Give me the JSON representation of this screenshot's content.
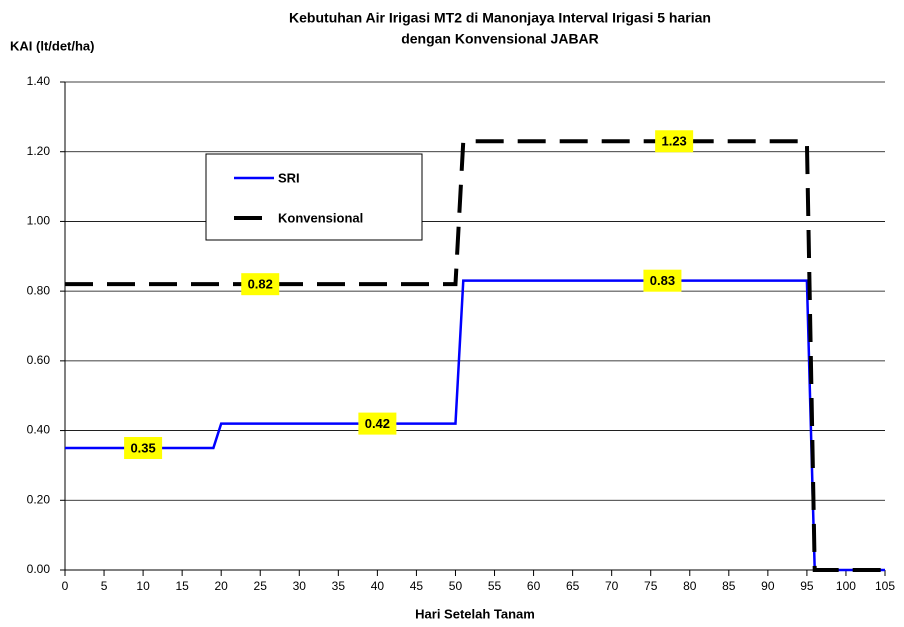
{
  "chart_data": {
    "type": "line",
    "title": [
      "Kebutuhan Air Irigasi MT2 di Manonjaya Interval Irigasi 5 harian",
      "dengan Konvensional JABAR"
    ],
    "y_label": "KAI (lt/det/ha)",
    "x_label": "Hari Setelah Tanam",
    "series": [
      {
        "name": "SRI",
        "color": "#0000ff",
        "dash": false,
        "x": [
          0,
          19,
          20,
          50,
          51,
          95,
          96,
          105
        ],
        "values": [
          0.35,
          0.35,
          0.42,
          0.42,
          0.83,
          0.83,
          0,
          0
        ]
      },
      {
        "name": "Konvensional",
        "color": "#000000",
        "dash": true,
        "x": [
          0,
          50,
          51,
          95,
          96,
          105
        ],
        "values": [
          0.82,
          0.82,
          1.23,
          1.23,
          0,
          0
        ]
      }
    ],
    "annotations": [
      {
        "text": "0.35",
        "x": 10,
        "y": 0.35
      },
      {
        "text": "0.42",
        "x": 40,
        "y": 0.42
      },
      {
        "text": "0.82",
        "x": 25,
        "y": 0.82
      },
      {
        "text": "0.83",
        "x": 76.5,
        "y": 0.83
      },
      {
        "text": "1.23",
        "x": 78,
        "y": 1.23
      }
    ],
    "xlim": [
      0,
      105
    ],
    "xticks": [
      0,
      5,
      10,
      15,
      20,
      25,
      30,
      35,
      40,
      45,
      50,
      55,
      60,
      65,
      70,
      75,
      80,
      85,
      90,
      95,
      100,
      105
    ],
    "ylim": [
      0,
      1.4
    ],
    "yticks": [
      {
        "value": 0,
        "label": "0.00"
      },
      {
        "value": 0.2,
        "label": "0.20"
      },
      {
        "value": 0.4,
        "label": "0.40"
      },
      {
        "value": 0.6,
        "label": "0.60"
      },
      {
        "value": 0.8,
        "label": "0.80"
      },
      {
        "value": 1.0,
        "label": "1.00"
      },
      {
        "value": 1.2,
        "label": "1.20"
      },
      {
        "value": 1.4,
        "label": "1.40"
      }
    ],
    "grid": true,
    "legend": "upper left"
  }
}
